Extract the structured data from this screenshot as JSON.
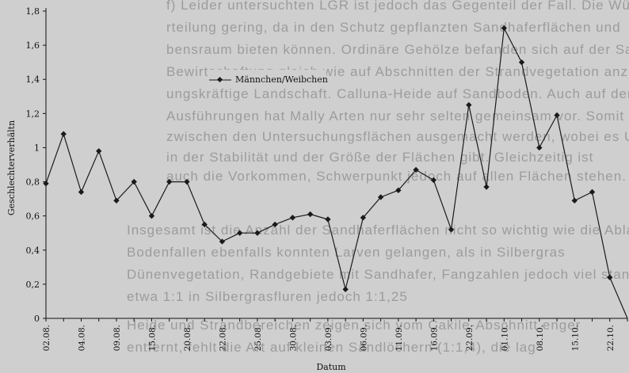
{
  "chart_data": {
    "type": "line",
    "title": "",
    "xlabel": "Datum",
    "ylabel": "Geschlechterverhältn",
    "ylim": [
      0,
      1.8
    ],
    "y_ticks": [
      "0",
      "0,2",
      "0,4",
      "0,6",
      "0,8",
      "1",
      "1,2",
      "1,4",
      "1,6",
      "1,8"
    ],
    "grid": false,
    "legend_position": "top-center",
    "x_tick_labels": [
      "02.08.",
      "04.08.",
      "09.08.",
      "15.08.",
      "20.08.",
      "22.08.",
      "25.08.",
      "30.08.",
      "03.09.",
      "06.09.",
      "11.09.",
      "16.09.",
      "22.09.",
      "01.10.",
      "08.10.",
      "15.10.",
      "22.10."
    ],
    "series": [
      {
        "name": "Männchen/Weibchen",
        "color": "#1a1a1a",
        "marker": "diamond",
        "values": [
          0.79,
          1.08,
          0.74,
          0.98,
          0.69,
          0.8,
          0.6,
          0.8,
          0.8,
          0.55,
          0.45,
          0.5,
          0.5,
          0.55,
          0.59,
          0.61,
          0.58,
          0.17,
          0.59,
          0.71,
          0.75,
          0.87,
          0.81,
          0.52,
          1.25,
          0.77,
          1.7,
          1.5,
          1.0,
          1.19,
          0.69,
          0.74,
          0.24,
          0.0
        ]
      }
    ]
  },
  "background_text": [
    "f) Leider untersuchten LGR ist jedoch das Gegenteil der Fall. Die Wühlmaus",
    "rteilung gering, da in den Schutz gepflanzten Sandhaferflächen und",
    "bensraum bieten können. Ordinäre Gehölze befanden sich auf der Sandohrenfläche",
    "Bewirtschaftung gleich wie auf Abschnitten der Strandvegetation anzutreffen",
    "ungskräftige Landschaft. Calluna-Heide auf Sandboden. Auch auf den",
    "Ausführungen hat Mally Arten nur sehr selten gemeinsam vor. Somit können",
    "zwischen den Untersuchungsflächen ausgemacht werden, wobei es Unterschiede",
    "in der Stabilität und der Größe der Flächen gibt. Gleichzeitig ist",
    "auch die Vorkommen, Schwerpunkt jedoch auf allen Flächen stehen.",
    "Insgesamt ist die Anzahl der Sandhaferflächen nicht so wichtig wie die Ablage. Hier",
    "Bodenfallen ebenfalls konnten Larven gelangen, als in Silbergras",
    "Dünenvegetation, Randgebiete mit Sandhafer, Fangzahlen jedoch viel stand",
    "etwa 1:1 in Silbergrasfluren jedoch 1:1,25",
    "Heide und Strandbereichen zeigen sich vom Cakile-Abschnitt enger",
    "entfernt, fehlt die Art auf kleinen Sandlöchern (1:1,4), die lag"
  ]
}
